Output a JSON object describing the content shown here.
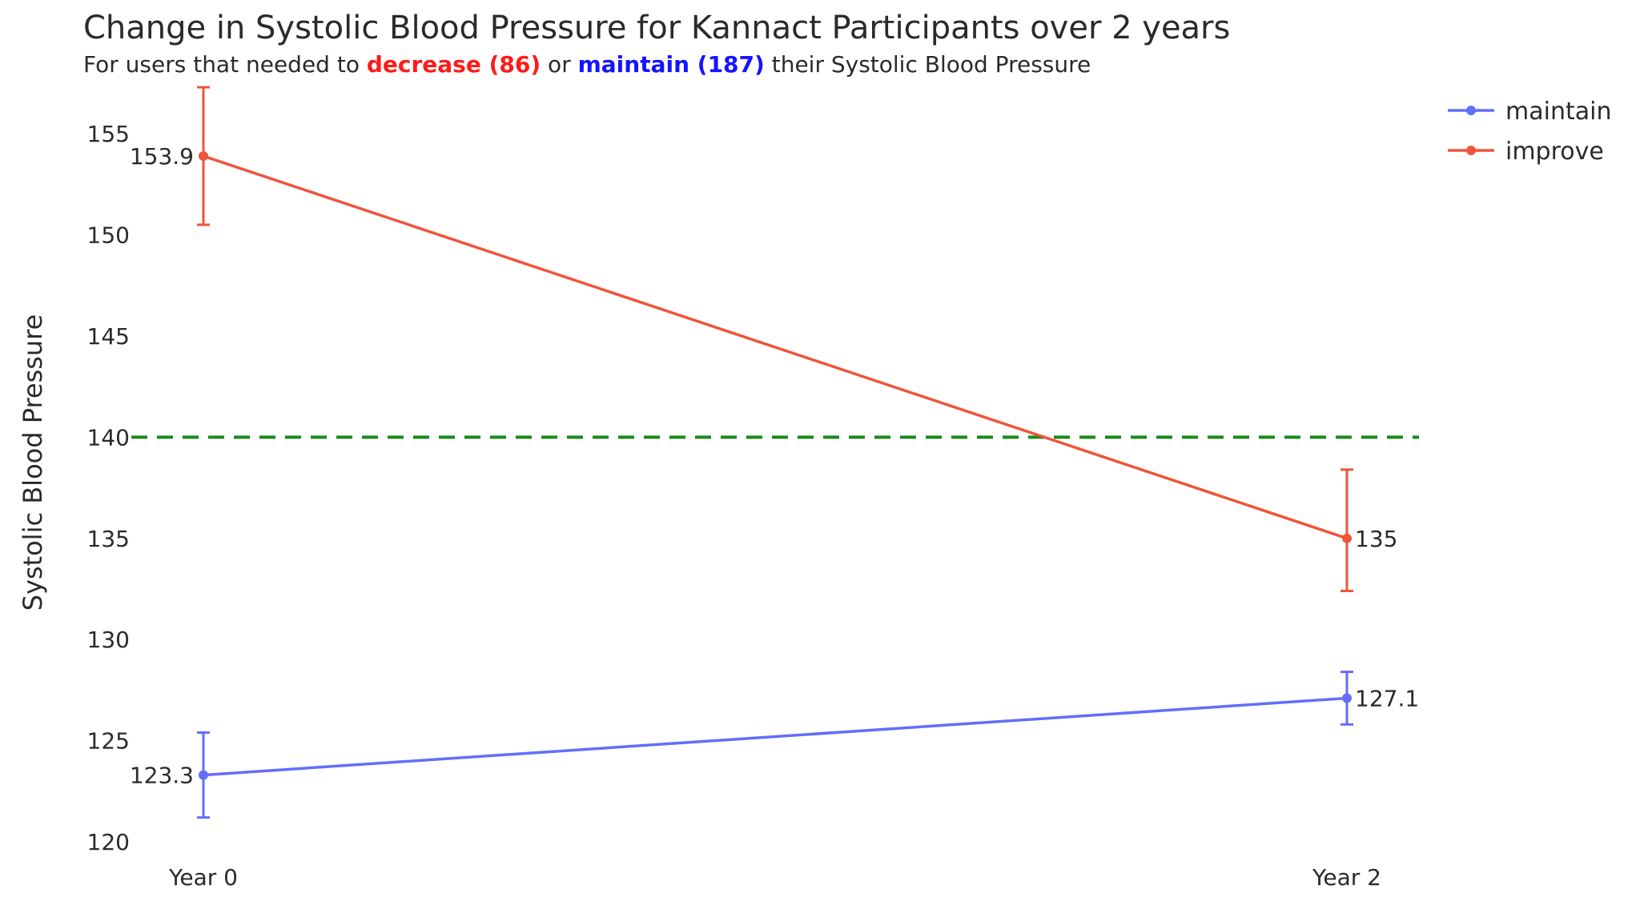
{
  "title": "Change in Systolic Blood Pressure for Kannact Participants over 2 years",
  "subtitle": {
    "prefix": "For users that needed to ",
    "decrease": "decrease (86)",
    "middle": " or ",
    "maintain": "maintain (187)",
    "suffix": " their Systolic Blood Pressure"
  },
  "colors": {
    "maintain": "#636efa",
    "improve": "#ef553b",
    "reference": "#1a8a1a",
    "highlight_decrease": "#ff1a1a",
    "highlight_maintain": "#1414ff"
  },
  "chart_data": {
    "type": "line",
    "title": "Change in Systolic Blood Pressure for Kannact Participants over 2 years",
    "xlabel": "",
    "ylabel": "Systolic Blood Pressure",
    "categories": [
      "Year 0",
      "Year 2"
    ],
    "ylim": [
      120,
      157.5
    ],
    "yticks": [
      120,
      125,
      130,
      135,
      140,
      145,
      150,
      155
    ],
    "grid": false,
    "legend_position": "top-right",
    "reference_line": {
      "y": 140,
      "style": "dashed"
    },
    "series": [
      {
        "name": "maintain",
        "values": [
          123.3,
          127.1
        ],
        "labels": [
          "123.3",
          "127.1"
        ],
        "error_low": [
          121.2,
          125.8
        ],
        "error_high": [
          125.4,
          128.4
        ]
      },
      {
        "name": "improve",
        "values": [
          153.9,
          135
        ],
        "labels": [
          "153.9",
          "135"
        ],
        "error_low": [
          150.5,
          132.4
        ],
        "error_high": [
          157.3,
          138.4
        ]
      }
    ]
  }
}
